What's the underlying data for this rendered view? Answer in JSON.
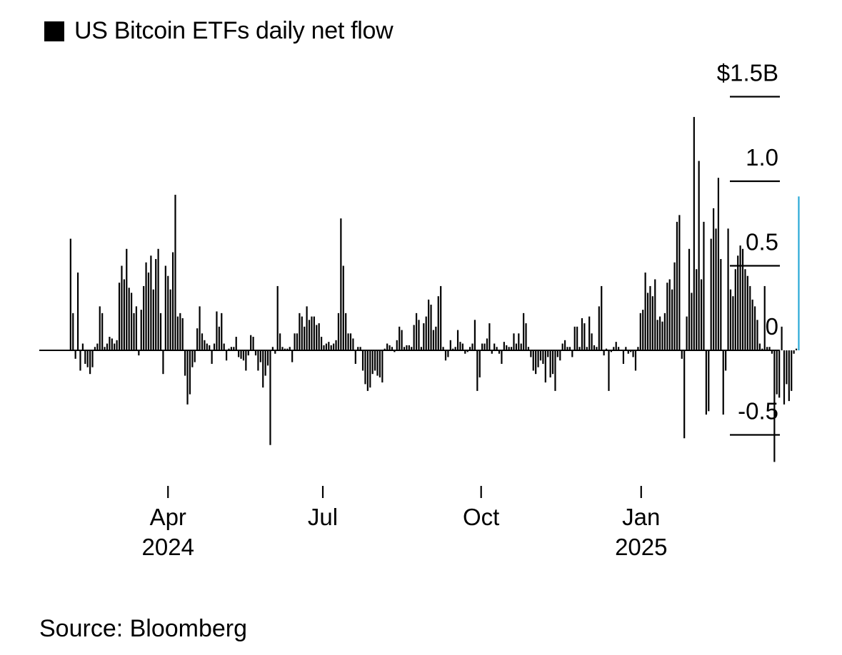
{
  "legend": {
    "label": "US Bitcoin ETFs daily net flow",
    "color": "#000000"
  },
  "source": "Source: Bloomberg",
  "chart_data": {
    "type": "bar",
    "title": "US Bitcoin ETFs daily net flow",
    "units": "USD billions",
    "xlabel": "",
    "ylabel": "",
    "ylim": [
      -0.75,
      1.5
    ],
    "y_ticks": [
      {
        "value": 1.5,
        "label": "$1.5B"
      },
      {
        "value": 1.0,
        "label": "1.0"
      },
      {
        "value": 0.5,
        "label": "0.5"
      },
      {
        "value": 0.0,
        "label": "0"
      },
      {
        "value": -0.5,
        "label": "-0.5"
      }
    ],
    "x_ticks": [
      {
        "label": "Apr",
        "sublabel": "2024",
        "index": 74
      },
      {
        "label": "Jul",
        "sublabel": "",
        "index": 163
      },
      {
        "label": "Oct",
        "sublabel": "",
        "index": 254
      },
      {
        "label": "Jan",
        "sublabel": "2025",
        "index": 346
      }
    ],
    "domain_days": 397,
    "series": [
      {
        "name": "Daily net flow",
        "color": "#000000",
        "highlight_color": "#29a9d6",
        "start_index": 18,
        "step_days": 1.4,
        "values": [
          0.66,
          0.22,
          -0.05,
          0.46,
          -0.12,
          0.04,
          -0.08,
          -0.1,
          -0.14,
          -0.1,
          0.02,
          0.04,
          0.26,
          0.22,
          0.02,
          0.04,
          0.08,
          0.07,
          0.04,
          0.06,
          0.4,
          0.5,
          0.42,
          0.6,
          0.37,
          0.34,
          0.22,
          0.26,
          -0.03,
          0.24,
          0.38,
          0.52,
          0.46,
          0.56,
          0.36,
          0.54,
          0.6,
          0.22,
          -0.14,
          0.5,
          0.44,
          0.36,
          0.58,
          0.92,
          0.2,
          0.22,
          0.19,
          -0.15,
          -0.32,
          -0.26,
          -0.1,
          -0.07,
          0.13,
          0.26,
          0.1,
          0.06,
          0.04,
          0.03,
          -0.08,
          0.04,
          0.23,
          0.14,
          0.22,
          0.04,
          -0.06,
          0.01,
          0.02,
          0.02,
          0.08,
          -0.04,
          -0.05,
          -0.06,
          -0.12,
          -0.03,
          0.09,
          0.08,
          -0.03,
          -0.12,
          -0.07,
          -0.22,
          -0.15,
          -0.09,
          -0.56,
          0.02,
          -0.02,
          0.38,
          0.1,
          0.02,
          0.01,
          0.01,
          0.02,
          -0.07,
          0.1,
          0.1,
          0.22,
          0.2,
          0.14,
          0.26,
          0.18,
          0.2,
          0.2,
          0.15,
          0.16,
          0.08,
          0.03,
          0.04,
          0.05,
          0.03,
          0.04,
          0.06,
          0.22,
          0.78,
          0.5,
          0.22,
          0.1,
          0.1,
          0.07,
          -0.08,
          0.02,
          0.02,
          -0.12,
          -0.2,
          -0.24,
          -0.22,
          -0.14,
          -0.12,
          -0.15,
          -0.16,
          -0.19,
          0.01,
          0.04,
          0.03,
          0.02,
          -0.01,
          0.06,
          0.14,
          0.12,
          0.02,
          0.03,
          0.03,
          0.02,
          0.15,
          0.22,
          0.18,
          0.02,
          0.16,
          0.2,
          0.3,
          0.27,
          0.12,
          0.14,
          0.32,
          0.38,
          0.02,
          -0.06,
          -0.04,
          0.06,
          0.01,
          0.02,
          0.12,
          0.05,
          0.04,
          -0.02,
          -0.01,
          0.02,
          0.04,
          0.18,
          -0.24,
          -0.16,
          0.04,
          0.04,
          0.07,
          0.16,
          -0.02,
          0.04,
          0.02,
          -0.02,
          -0.08,
          0.05,
          0.03,
          0.02,
          0.02,
          0.1,
          0.04,
          0.1,
          0.04,
          0.22,
          0.16,
          0.02,
          -0.04,
          -0.12,
          -0.14,
          -0.1,
          -0.06,
          -0.08,
          -0.19,
          -0.04,
          -0.16,
          -0.14,
          -0.24,
          -0.04,
          -0.06,
          0.04,
          0.06,
          0.02,
          0.02,
          -0.04,
          0.14,
          0.14,
          0.02,
          0.19,
          0.16,
          0.02,
          0.2,
          0.1,
          0.03,
          0.02,
          0.26,
          0.38,
          -0.03,
          0.01,
          -0.24,
          -0.01,
          0.02,
          0.05,
          0.02,
          0.0,
          -0.08,
          0.02,
          -0.02,
          -0.01,
          -0.04,
          -0.12,
          0.02,
          0.22,
          0.24,
          0.46,
          0.34,
          0.38,
          0.32,
          0.42,
          0.18,
          0.2,
          0.17,
          0.22,
          0.4,
          0.42,
          0.36,
          0.52,
          0.76,
          0.8,
          -0.05,
          -0.52,
          0.2,
          0.6,
          0.34,
          1.38,
          0.48,
          1.12,
          0.42,
          0.76,
          -0.38,
          -0.36,
          0.66,
          0.84,
          0.72,
          1.02,
          0.54,
          -0.38,
          -0.12,
          0.72,
          0.36,
          0.32,
          0.48,
          0.56,
          0.62,
          0.6,
          0.48,
          0.44,
          0.38,
          0.3,
          0.26,
          0.18,
          0.04,
          0.01,
          0.38,
          0.02,
          0.02,
          -0.02,
          -0.66,
          -0.26,
          -0.28,
          0.14,
          -0.32,
          -0.2,
          -0.3,
          -0.24,
          -0.02,
          0.01,
          0.91
        ],
        "highlight_last": true
      }
    ]
  }
}
